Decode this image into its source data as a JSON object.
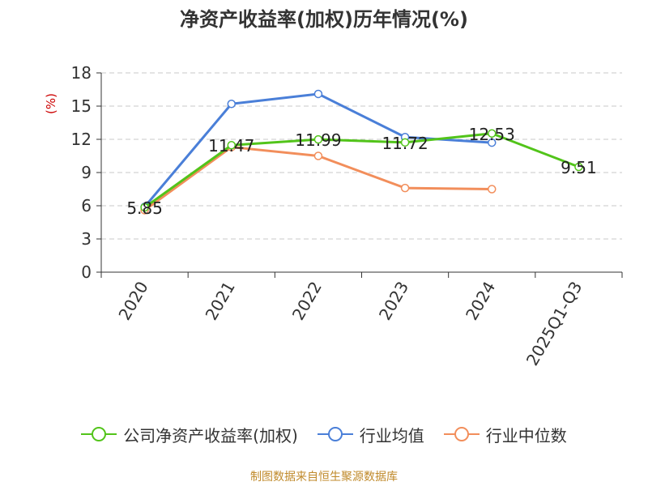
{
  "chart_data": {
    "type": "line",
    "title": "净资产收益率(加权)历年情况(%)",
    "ylabel": "(%)",
    "categories": [
      "2020",
      "2021",
      "2022",
      "2023",
      "2024",
      "2025Q1-Q3"
    ],
    "ylim": [
      0,
      18
    ],
    "yticks": [
      0,
      3,
      6,
      9,
      12,
      15,
      18
    ],
    "grid": true,
    "legend_position": "bottom",
    "series": [
      {
        "name": "公司净资产收益率(加权)",
        "color": "#52c41a",
        "labeled": true,
        "values": [
          5.85,
          11.47,
          11.99,
          11.72,
          12.53,
          9.51
        ],
        "labels": [
          "5.85",
          "11.47",
          "11.99",
          "11.72",
          "12.53",
          "9.51"
        ]
      },
      {
        "name": "行业均值",
        "color": "#4a7fd8",
        "labeled": false,
        "values": [
          5.9,
          15.2,
          16.1,
          12.2,
          11.7,
          null
        ]
      },
      {
        "name": "行业中位数",
        "color": "#f28e5b",
        "labeled": false,
        "values": [
          5.6,
          11.3,
          10.5,
          7.6,
          7.5,
          null
        ]
      }
    ]
  },
  "source": "制图数据来自恒生聚源数据库"
}
